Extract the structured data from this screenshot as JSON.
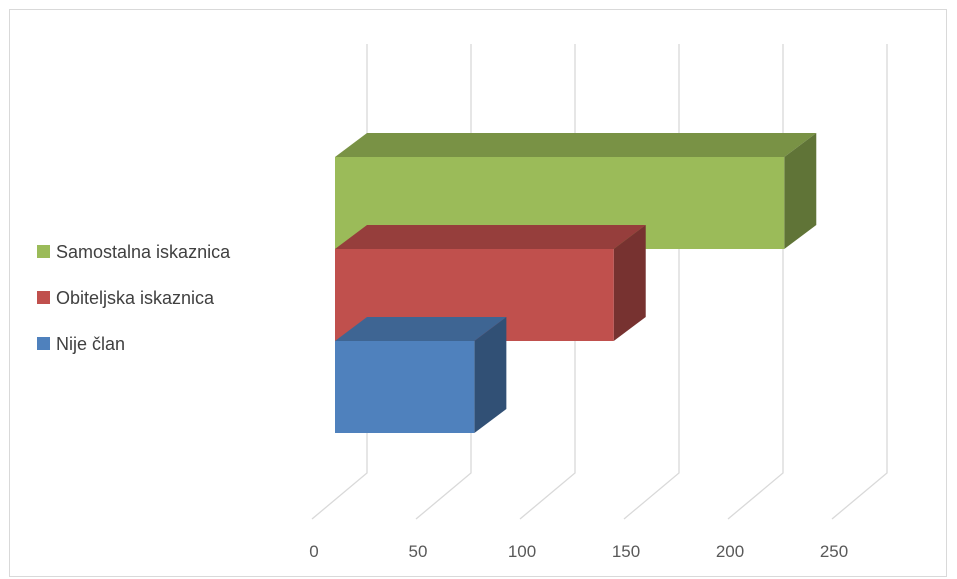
{
  "chart_data": {
    "type": "bar",
    "orientation": "horizontal",
    "three_d": true,
    "categories": [
      "Nije član",
      "Obiteljska iskaznica",
      "Samostalna iskaznica"
    ],
    "values": [
      67,
      134,
      216
    ],
    "colors": [
      "#4f81bd",
      "#c0504d",
      "#9bbb59"
    ],
    "xlim": [
      0,
      250
    ],
    "xticks": [
      "0",
      "50",
      "100",
      "150",
      "200",
      "250"
    ],
    "grid": true,
    "legend": {
      "position": "left",
      "entries": [
        "Samostalna iskaznica",
        "Obiteljska iskaznica",
        "Nije član"
      ]
    },
    "title": "",
    "xlabel": "",
    "ylabel": ""
  }
}
